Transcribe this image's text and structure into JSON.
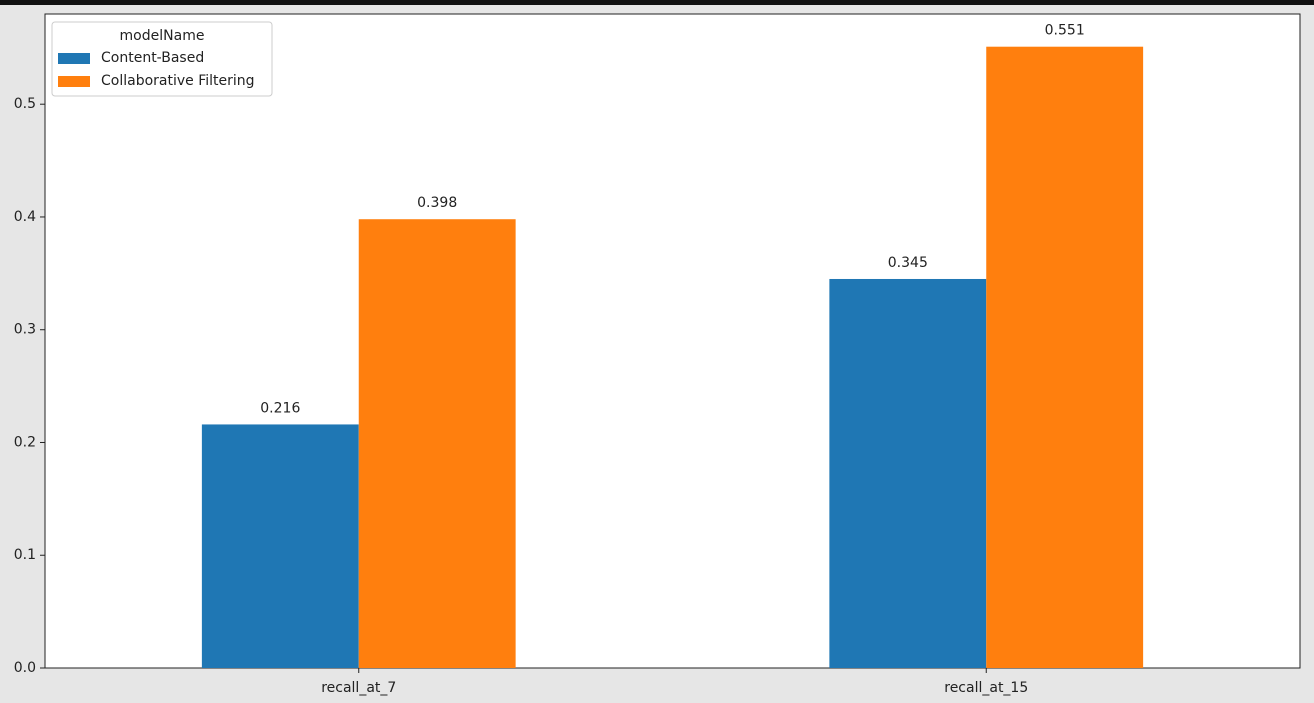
{
  "chart_data": {
    "type": "bar",
    "categories": [
      "recall_at_7",
      "recall_at_15"
    ],
    "series": [
      {
        "name": "Content-Based",
        "color": "#1f77b4",
        "values": [
          0.216,
          0.345
        ]
      },
      {
        "name": "Collaborative Filtering",
        "color": "#ff7f0e",
        "values": [
          0.398,
          0.551
        ]
      }
    ],
    "legend_title": "modelName",
    "legend": "upper left",
    "ylim": [
      0,
      0.58
    ],
    "yticks": [
      {
        "value": 0,
        "label": "0.0"
      },
      0.1,
      0.2,
      0.3,
      0.4,
      0.5
    ],
    "grid": false
  }
}
